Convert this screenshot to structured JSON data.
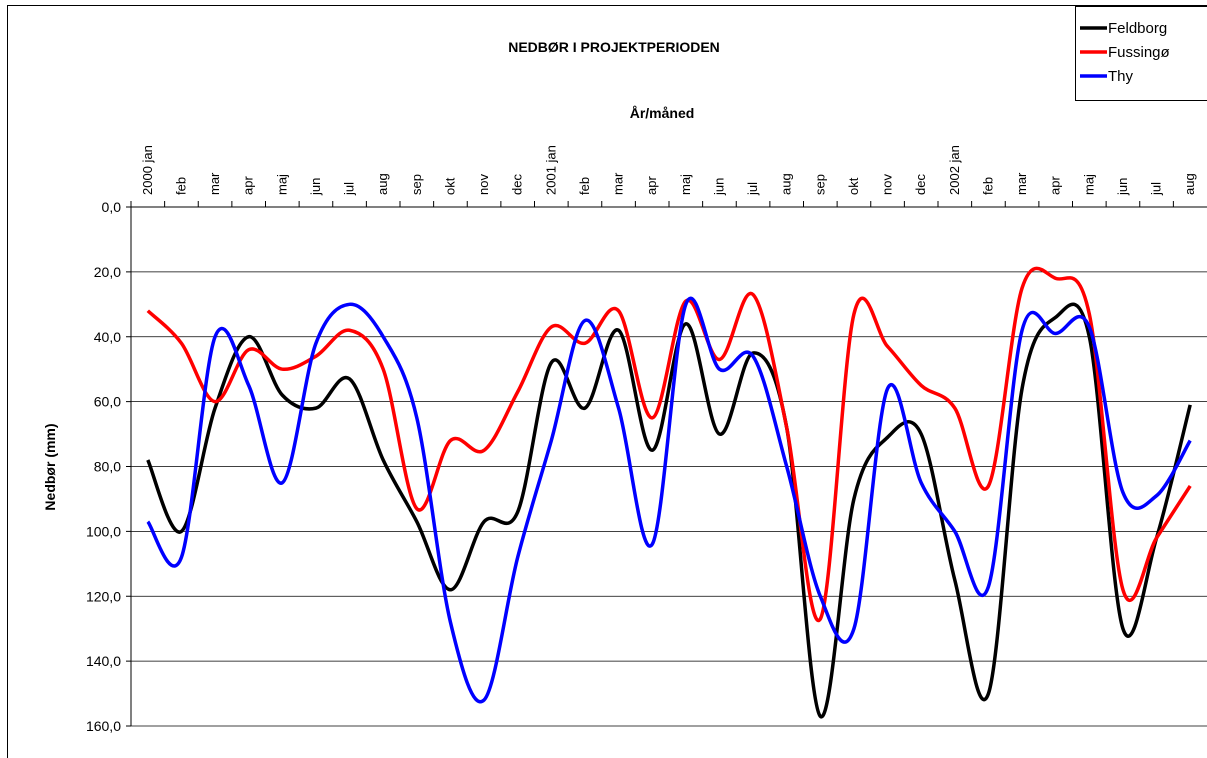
{
  "chart_data": {
    "type": "line",
    "title": "NEDBØR I PROJEKTPERIODEN",
    "x_label": "År/måned",
    "y_label": "Nedbør (mm)",
    "categories": [
      "2000 jan",
      "feb",
      "mar",
      "apr",
      "maj",
      "jun",
      "jul",
      "aug",
      "sep",
      "okt",
      "nov",
      "dec",
      "2001 jan",
      "feb",
      "mar",
      "apr",
      "maj",
      "jun",
      "jul",
      "aug",
      "sep",
      "okt",
      "nov",
      "dec",
      "2002 jan",
      "feb",
      "mar",
      "apr",
      "maj",
      "jun",
      "jul",
      "aug"
    ],
    "series": [
      {
        "name": "Feldborg",
        "color": "#000000",
        "values": [
          78,
          100,
          62,
          40,
          58,
          62,
          53,
          78,
          97,
          118,
          97,
          94,
          48,
          62,
          38,
          75,
          36,
          70,
          45,
          68,
          157,
          90,
          71,
          70,
          115,
          150,
          56,
          34,
          40,
          130,
          102,
          61
        ]
      },
      {
        "name": "Fussingø",
        "color": "#ff0000",
        "values": [
          32,
          42,
          60,
          44,
          50,
          46,
          38,
          50,
          93,
          72,
          75,
          57,
          37,
          42,
          32,
          65,
          29,
          47,
          27,
          68,
          127,
          33,
          43,
          55,
          62,
          86,
          25,
          22,
          33,
          118,
          102,
          86
        ]
      },
      {
        "name": "Thy",
        "color": "#0000ff",
        "values": [
          97,
          108,
          40,
          55,
          85,
          42,
          30,
          40,
          65,
          128,
          152,
          108,
          72,
          35,
          62,
          104,
          30,
          50,
          46,
          80,
          120,
          130,
          56,
          85,
          100,
          117,
          38,
          39,
          37,
          88,
          89,
          72
        ]
      }
    ],
    "ylim": [
      0,
      160
    ],
    "y_reversed": true,
    "yticks": [
      {
        "value": 0,
        "label": "0,0"
      },
      {
        "value": 20,
        "label": "20,0"
      },
      {
        "value": 40,
        "label": "40,0"
      },
      {
        "value": 60,
        "label": "60,0"
      },
      {
        "value": 80,
        "label": "80,0"
      },
      {
        "value": 100,
        "label": "100,0"
      },
      {
        "value": 120,
        "label": "120,0"
      },
      {
        "value": 140,
        "label": "140,0"
      },
      {
        "value": 160,
        "label": "160,0"
      }
    ],
    "grid": true,
    "legend": "upper right",
    "smooth": true
  }
}
